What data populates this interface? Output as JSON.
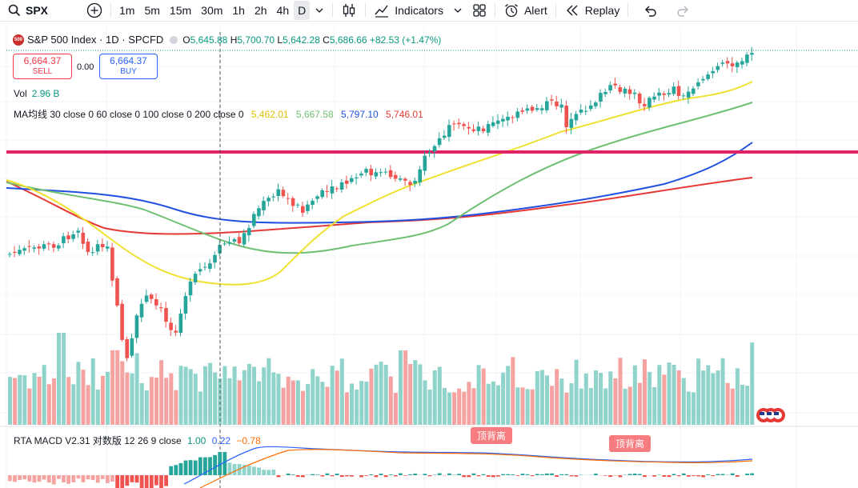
{
  "toolbar": {
    "symbol": "SPX",
    "intervals": [
      "1m",
      "5m",
      "15m",
      "30m",
      "1h",
      "2h",
      "4h",
      "D"
    ],
    "active_interval": "D",
    "indicators_label": "Indicators",
    "alert_label": "Alert",
    "replay_label": "Replay"
  },
  "legend": {
    "title": "S&P 500 Index · 1D · SPCFD",
    "open_label": "O",
    "open": "5,645.88",
    "high_label": "H",
    "high": "5,700.70",
    "low_label": "L",
    "low": "5,642.28",
    "close_label": "C",
    "close": "5,686.66",
    "change": "+82.53 (+1.47%)"
  },
  "trade": {
    "sell_price": "6,664.37",
    "sell_label": "SELL",
    "spread": "0.00",
    "buy_price": "6,664.37",
    "buy_label": "BUY"
  },
  "volume": {
    "label": "Vol",
    "value": "2.96 B"
  },
  "ma_study": {
    "label": "MA均线 30 close 0 60 close 0 100 close 0 200 close 0",
    "values": [
      "5,462.01",
      "5,667.58",
      "5,797.10",
      "5,746.01"
    ],
    "colors": [
      "#f0e130",
      "#6fbf73",
      "#2150e0",
      "#e53935"
    ]
  },
  "macd_study": {
    "label": "RTA MACD V2.31 对数版 12 26 9 close",
    "values": [
      "1.00",
      "0.22",
      "−0.78"
    ],
    "colors": [
      "#089981",
      "#2962ff",
      "#ff6d00"
    ],
    "tags": [
      "顶背离",
      "顶背离"
    ]
  },
  "colors": {
    "up": "#26a69a",
    "down": "#ef5350",
    "hline": "#e02266"
  }
}
